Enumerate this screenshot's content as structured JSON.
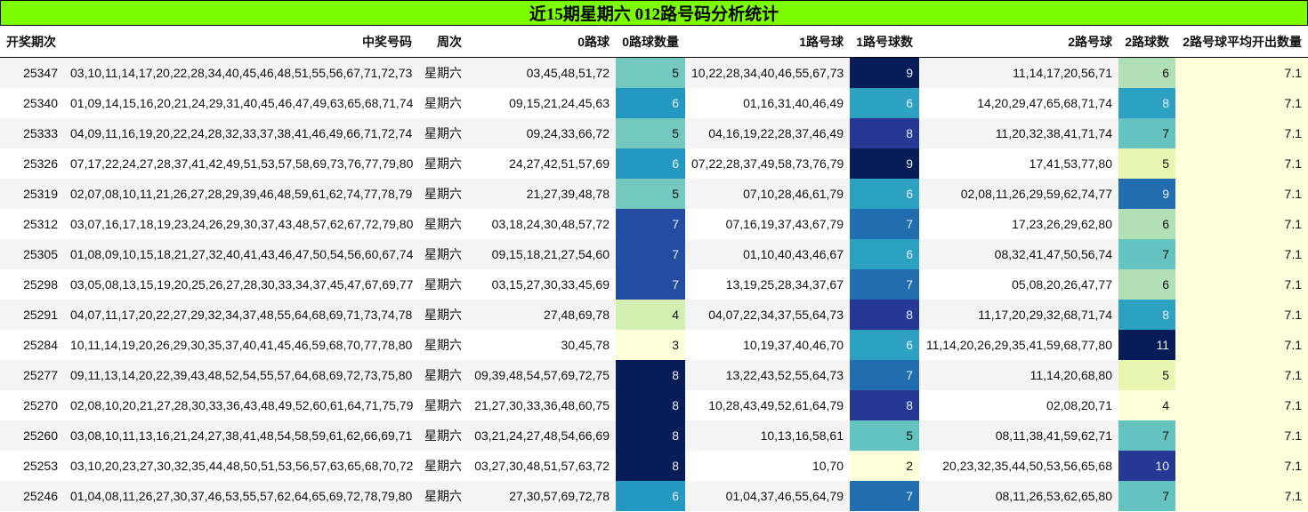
{
  "title": "近15期星期六 012路号码分析统计",
  "columns": [
    "开奖期次",
    "中奖号码",
    "周次",
    "0路球",
    "0路球数量",
    "1路号球",
    "1路号球数",
    "2路号球",
    "2路球数",
    "2路号球平均开出数量"
  ],
  "rows": [
    {
      "issue": "25347",
      "numbers": "03,10,11,14,17,20,22,28,34,40,45,46,48,51,55,56,67,71,72,73",
      "weekday": "星期六",
      "r0": "03,45,48,51,72",
      "r0_count": "5",
      "r1": "10,22,28,34,40,46,55,67,73",
      "r1_count": "9",
      "r2": "11,14,17,20,56,71",
      "r2_count": "6",
      "avg": "7.1"
    },
    {
      "issue": "25340",
      "numbers": "01,09,14,15,16,20,21,24,29,31,40,45,46,47,49,63,65,68,71,74",
      "weekday": "星期六",
      "r0": "09,15,21,24,45,63",
      "r0_count": "6",
      "r1": "01,16,31,40,46,49",
      "r1_count": "6",
      "r2": "14,20,29,47,65,68,71,74",
      "r2_count": "8",
      "avg": "7.1"
    },
    {
      "issue": "25333",
      "numbers": "04,09,11,16,19,20,22,24,28,32,33,37,38,41,46,49,66,71,72,74",
      "weekday": "星期六",
      "r0": "09,24,33,66,72",
      "r0_count": "5",
      "r1": "04,16,19,22,28,37,46,49",
      "r1_count": "8",
      "r2": "11,20,32,38,41,71,74",
      "r2_count": "7",
      "avg": "7.1"
    },
    {
      "issue": "25326",
      "numbers": "07,17,22,24,27,28,37,41,42,49,51,53,57,58,69,73,76,77,79,80",
      "weekday": "星期六",
      "r0": "24,27,42,51,57,69",
      "r0_count": "6",
      "r1": "07,22,28,37,49,58,73,76,79",
      "r1_count": "9",
      "r2": "17,41,53,77,80",
      "r2_count": "5",
      "avg": "7.1"
    },
    {
      "issue": "25319",
      "numbers": "02,07,08,10,11,21,26,27,28,29,39,46,48,59,61,62,74,77,78,79",
      "weekday": "星期六",
      "r0": "21,27,39,48,78",
      "r0_count": "5",
      "r1": "07,10,28,46,61,79",
      "r1_count": "6",
      "r2": "02,08,11,26,29,59,62,74,77",
      "r2_count": "9",
      "avg": "7.1"
    },
    {
      "issue": "25312",
      "numbers": "03,07,16,17,18,19,23,24,26,29,30,37,43,48,57,62,67,72,79,80",
      "weekday": "星期六",
      "r0": "03,18,24,30,48,57,72",
      "r0_count": "7",
      "r1": "07,16,19,37,43,67,79",
      "r1_count": "7",
      "r2": "17,23,26,29,62,80",
      "r2_count": "6",
      "avg": "7.1"
    },
    {
      "issue": "25305",
      "numbers": "01,08,09,10,15,18,21,27,32,40,41,43,46,47,50,54,56,60,67,74",
      "weekday": "星期六",
      "r0": "09,15,18,21,27,54,60",
      "r0_count": "7",
      "r1": "01,10,40,43,46,67",
      "r1_count": "6",
      "r2": "08,32,41,47,50,56,74",
      "r2_count": "7",
      "avg": "7.1"
    },
    {
      "issue": "25298",
      "numbers": "03,05,08,13,15,19,20,25,26,27,28,30,33,34,37,45,47,67,69,77",
      "weekday": "星期六",
      "r0": "03,15,27,30,33,45,69",
      "r0_count": "7",
      "r1": "13,19,25,28,34,37,67",
      "r1_count": "7",
      "r2": "05,08,20,26,47,77",
      "r2_count": "6",
      "avg": "7.1"
    },
    {
      "issue": "25291",
      "numbers": "04,07,11,17,20,22,27,29,32,34,37,48,55,64,68,69,71,73,74,78",
      "weekday": "星期六",
      "r0": "27,48,69,78",
      "r0_count": "4",
      "r1": "04,07,22,34,37,55,64,73",
      "r1_count": "8",
      "r2": "11,17,20,29,32,68,71,74",
      "r2_count": "8",
      "avg": "7.1"
    },
    {
      "issue": "25284",
      "numbers": "10,11,14,19,20,26,29,30,35,37,40,41,45,46,59,68,70,77,78,80",
      "weekday": "星期六",
      "r0": "30,45,78",
      "r0_count": "3",
      "r1": "10,19,37,40,46,70",
      "r1_count": "6",
      "r2": "11,14,20,26,29,35,41,59,68,77,80",
      "r2_count": "11",
      "avg": "7.1"
    },
    {
      "issue": "25277",
      "numbers": "09,11,13,14,20,22,39,43,48,52,54,55,57,64,68,69,72,73,75,80",
      "weekday": "星期六",
      "r0": "09,39,48,54,57,69,72,75",
      "r0_count": "8",
      "r1": "13,22,43,52,55,64,73",
      "r1_count": "7",
      "r2": "11,14,20,68,80",
      "r2_count": "5",
      "avg": "7.1"
    },
    {
      "issue": "25270",
      "numbers": "02,08,10,20,21,27,28,30,33,36,43,48,49,52,60,61,64,71,75,79",
      "weekday": "星期六",
      "r0": "21,27,30,33,36,48,60,75",
      "r0_count": "8",
      "r1": "10,28,43,49,52,61,64,79",
      "r1_count": "8",
      "r2": "02,08,20,71",
      "r2_count": "4",
      "avg": "7.1"
    },
    {
      "issue": "25260",
      "numbers": "03,08,10,11,13,16,21,24,27,38,41,48,54,58,59,61,62,66,69,71",
      "weekday": "星期六",
      "r0": "03,21,24,27,48,54,66,69",
      "r0_count": "8",
      "r1": "10,13,16,58,61",
      "r1_count": "5",
      "r2": "08,11,38,41,59,62,71",
      "r2_count": "7",
      "avg": "7.1"
    },
    {
      "issue": "25253",
      "numbers": "03,10,20,23,27,30,32,35,44,48,50,51,53,56,57,63,65,68,70,72",
      "weekday": "星期六",
      "r0": "03,27,30,48,51,57,63,72",
      "r0_count": "8",
      "r1": "10,70",
      "r1_count": "2",
      "r2": "20,23,32,35,44,50,53,56,65,68",
      "r2_count": "10",
      "avg": "7.1"
    },
    {
      "issue": "25246",
      "numbers": "01,04,08,11,26,27,30,37,46,53,55,57,62,64,65,69,72,78,79,80",
      "weekday": "星期六",
      "r0": "27,30,57,69,72,78",
      "r0_count": "6",
      "r1": "01,04,37,46,55,64,79",
      "r1_count": "7",
      "r2": "08,11,26,53,62,65,80",
      "r2_count": "7",
      "avg": "7.1"
    }
  ],
  "heat_colors": {
    "r0_count": {
      "3": "#ffffd9",
      "4": "#d5efb3",
      "5": "#73c9bd",
      "6": "#2498c1",
      "7": "#234da0",
      "8": "#081d58"
    },
    "r1_count": {
      "2": "#ffffd9",
      "5": "#63c3bf",
      "6": "#2ca1c2",
      "7": "#216daf",
      "8": "#253896",
      "9": "#081d58"
    },
    "r2_count": {
      "4": "#ffffd9",
      "5": "#e8f6b1",
      "6": "#b2e0b6",
      "7": "#65c3bf",
      "8": "#2ca1c2",
      "9": "#216daf",
      "10": "#253896",
      "11": "#081d58"
    }
  },
  "colors": {
    "title_bg": "#7cfc00",
    "avg_bg": "#ffffdc",
    "row_alt_bg": "#f4f4f4"
  }
}
